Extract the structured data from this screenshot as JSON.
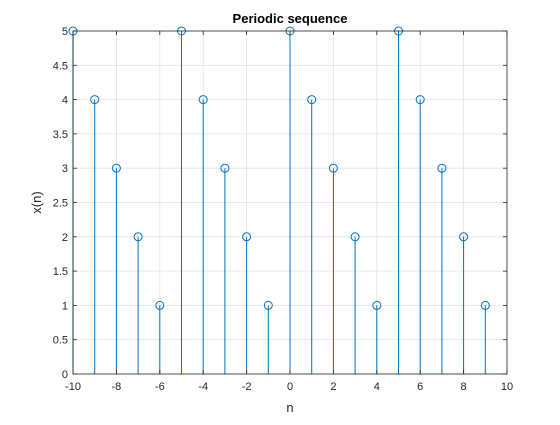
{
  "chart_data": {
    "type": "stem",
    "title": "Periodic sequence",
    "xlabel": "n",
    "ylabel": "x(n)",
    "xlim": [
      -10,
      10
    ],
    "ylim": [
      0,
      5
    ],
    "xticks": [
      "-10",
      "-8",
      "-6",
      "-4",
      "-2",
      "0",
      "2",
      "4",
      "6",
      "8",
      "10"
    ],
    "yticks": [
      "0",
      "0.5",
      "1",
      "1.5",
      "2",
      "2.5",
      "3",
      "3.5",
      "4",
      "4.5",
      "5"
    ],
    "grid": true,
    "x": [
      -10,
      -9,
      -8,
      -7,
      -6,
      -5,
      -4,
      -3,
      -2,
      -1,
      0,
      1,
      2,
      3,
      4,
      5,
      6,
      7,
      8,
      9
    ],
    "y": [
      5,
      4,
      3,
      2,
      1,
      5,
      4,
      3,
      2,
      1,
      5,
      4,
      3,
      2,
      1,
      5,
      4,
      3,
      2,
      1
    ],
    "color": "#0072bd"
  }
}
